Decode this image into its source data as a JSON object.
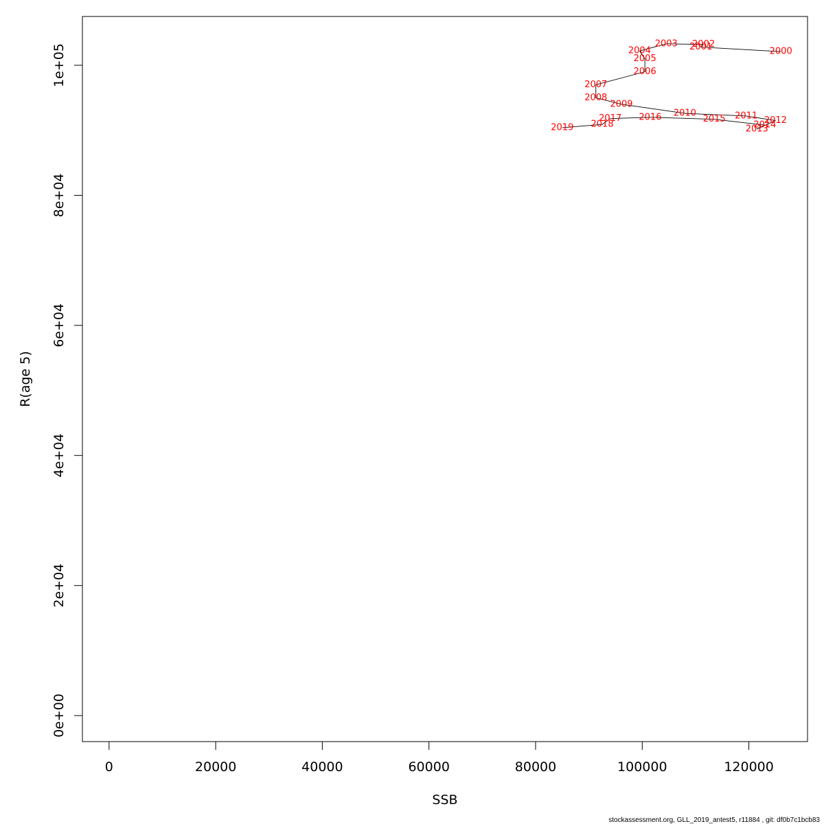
{
  "chart_data": {
    "type": "line",
    "xlabel": "SSB",
    "ylabel": "R(age 5)",
    "xlim": [
      -5000,
      131000
    ],
    "ylim": [
      -4000,
      107500
    ],
    "x_ticks": [
      0,
      20000,
      40000,
      60000,
      80000,
      100000,
      120000
    ],
    "x_tick_labels": [
      "0",
      "20000",
      "40000",
      "60000",
      "80000",
      "100000",
      "120000"
    ],
    "y_ticks": [
      0,
      20000,
      40000,
      60000,
      80000,
      100000
    ],
    "y_tick_labels": [
      "0e+00",
      "2e+04",
      "4e+04",
      "6e+04",
      "8e+04",
      "1e+05"
    ],
    "grid": false,
    "points": [
      {
        "year": "2000",
        "ssb": 126000,
        "r": 102100
      },
      {
        "year": "2001",
        "ssb": 111000,
        "r": 102800
      },
      {
        "year": "2002",
        "ssb": 111500,
        "r": 103200
      },
      {
        "year": "2003",
        "ssb": 104500,
        "r": 103300
      },
      {
        "year": "2004",
        "ssb": 99500,
        "r": 102200
      },
      {
        "year": "2005",
        "ssb": 100500,
        "r": 101000
      },
      {
        "year": "2006",
        "ssb": 100500,
        "r": 99000
      },
      {
        "year": "2007",
        "ssb": 91300,
        "r": 97000
      },
      {
        "year": "2008",
        "ssb": 91300,
        "r": 95000
      },
      {
        "year": "2009",
        "ssb": 96100,
        "r": 94000
      },
      {
        "year": "2010",
        "ssb": 108000,
        "r": 92600
      },
      {
        "year": "2011",
        "ssb": 119500,
        "r": 92200
      },
      {
        "year": "2012",
        "ssb": 125000,
        "r": 91500
      },
      {
        "year": "2013",
        "ssb": 121500,
        "r": 90200
      },
      {
        "year": "2014",
        "ssb": 123000,
        "r": 90800
      },
      {
        "year": "2015",
        "ssb": 113500,
        "r": 91700
      },
      {
        "year": "2016",
        "ssb": 101500,
        "r": 92000
      },
      {
        "year": "2017",
        "ssb": 94000,
        "r": 91800
      },
      {
        "year": "2018",
        "ssb": 92500,
        "r": 90900
      },
      {
        "year": "2019",
        "ssb": 85000,
        "r": 90400
      }
    ]
  },
  "footer": {
    "text": "stockassessment.org, GLL_2019_antest5, r11884 , git: df0b7c1bcb83"
  },
  "colors": {
    "labels": "#ff0000",
    "lines": "#000000"
  }
}
